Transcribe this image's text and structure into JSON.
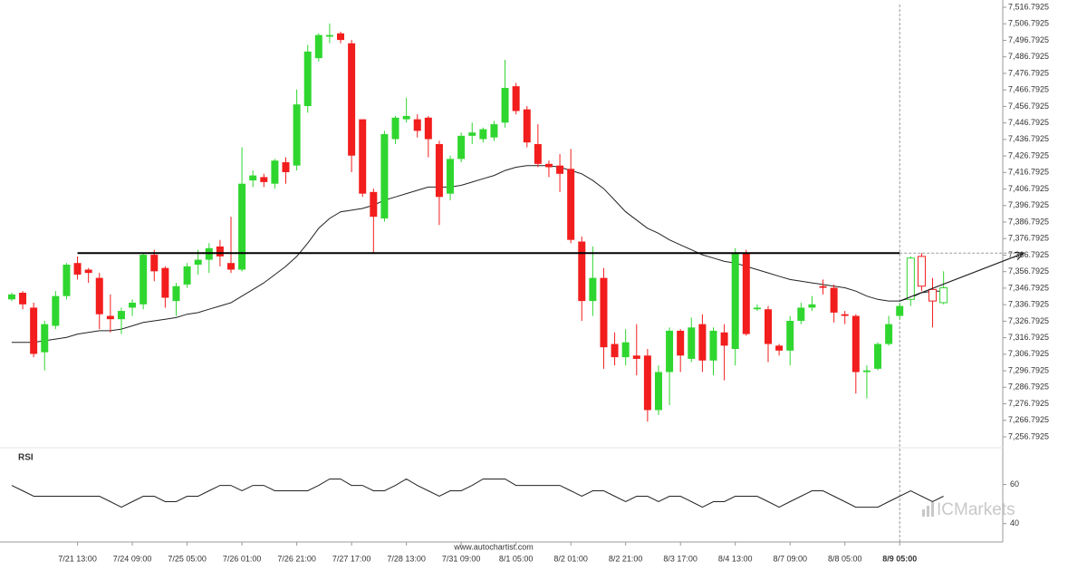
{
  "chart_data": [
    {
      "type": "candlestick",
      "up_color": "#2fd62f",
      "down_color": "#f21d1d",
      "xlim": [
        -1.07,
        90.4
      ],
      "ylim": [
        7251.3,
        7521.2
      ],
      "yticks": [
        {
          "value": 7256.7925,
          "label": "7,256.7925"
        },
        {
          "value": 7266.7925,
          "label": "7,266.7925"
        },
        {
          "value": 7276.7925,
          "label": "7,276.7925"
        },
        {
          "value": 7286.7925,
          "label": "7,286.7925"
        },
        {
          "value": 7296.7925,
          "label": "7,296.7925"
        },
        {
          "value": 7306.7925,
          "label": "7,306.7925"
        },
        {
          "value": 7316.7925,
          "label": "7,316.7925"
        },
        {
          "value": 7326.7925,
          "label": "7,326.7925"
        },
        {
          "value": 7336.7925,
          "label": "7,336.7925"
        },
        {
          "value": 7346.7925,
          "label": "7,346.7925"
        },
        {
          "value": 7356.7925,
          "label": "7,356.7925"
        },
        {
          "value": 7366.7925,
          "label": "7,366.7925"
        },
        {
          "value": 7376.7925,
          "label": "7,376.7925"
        },
        {
          "value": 7386.7925,
          "label": "7,386.7925"
        },
        {
          "value": 7396.7925,
          "label": "7,396.7925"
        },
        {
          "value": 7406.7925,
          "label": "7,406.7925"
        },
        {
          "value": 7416.7925,
          "label": "7,416.7925"
        },
        {
          "value": 7426.7925,
          "label": "7,426.7925"
        },
        {
          "value": 7436.7925,
          "label": "7,436.7925"
        },
        {
          "value": 7446.7925,
          "label": "7,446.7925"
        },
        {
          "value": 7456.7925,
          "label": "7,456.7925"
        },
        {
          "value": 7466.7925,
          "label": "7,466.7925"
        },
        {
          "value": 7476.7925,
          "label": "7,476.7925"
        },
        {
          "value": 7486.7925,
          "label": "7,486.7925"
        },
        {
          "value": 7496.7925,
          "label": "7,496.7925"
        },
        {
          "value": 7506.7925,
          "label": "7,506.7925"
        },
        {
          "value": 7516.7925,
          "label": "7,516.7925"
        }
      ],
      "xticks": [
        {
          "value": 6,
          "label": "7/21 13:00"
        },
        {
          "value": 11,
          "label": "7/24 09:00"
        },
        {
          "value": 16,
          "label": "7/25 05:00"
        },
        {
          "value": 21,
          "label": "7/26 01:00"
        },
        {
          "value": 26,
          "label": "7/26 21:00"
        },
        {
          "value": 31,
          "label": "7/27 17:00"
        },
        {
          "value": 36,
          "label": "7/28 13:00"
        },
        {
          "value": 41,
          "label": "7/31 09:00"
        },
        {
          "value": 46,
          "label": "8/1 05:00"
        },
        {
          "value": 51,
          "label": "8/2 01:00"
        },
        {
          "value": 56,
          "label": "8/2 21:00"
        },
        {
          "value": 61,
          "label": "8/3 17:00"
        },
        {
          "value": 66,
          "label": "8/4 13:00"
        },
        {
          "value": 71,
          "label": "8/7 09:00"
        },
        {
          "value": 76,
          "label": "8/8 05:00"
        },
        {
          "value": 81,
          "label": "8/9 05:00"
        }
      ],
      "highlight_tick": 15,
      "open": [
        7340,
        7344,
        7335,
        7308,
        7324,
        7342,
        7362,
        7358,
        7353,
        7330,
        7328,
        7335,
        7337,
        7367,
        7359,
        7339,
        7349,
        7361,
        7364,
        7372,
        7362,
        7358,
        7412,
        7414,
        7410,
        7423,
        7421,
        7457,
        7486,
        7499,
        7501,
        7495,
        7449,
        7405,
        7389,
        7437,
        7449,
        7449,
        7450,
        7434,
        7404,
        7425,
        7439,
        7437,
        7438,
        7447,
        7469,
        7455,
        7434,
        7422,
        7421,
        7419,
        7375,
        7339,
        7353,
        7313,
        7305,
        7306,
        7306,
        7273,
        7296,
        7321,
        7304,
        7325,
        7303,
        7320,
        7310,
        7368,
        7334,
        7334,
        7312,
        7309,
        7327,
        7335,
        7348,
        7347,
        7331,
        7330,
        7296,
        7298,
        7313,
        7330,
        7340,
        7366,
        7346,
        7338
      ],
      "high": [
        7344,
        7345,
        7338,
        7327,
        7345,
        7362,
        7366,
        7359,
        7356,
        7343,
        7335,
        7340,
        7368,
        7370,
        7360,
        7350,
        7362,
        7370,
        7374,
        7376,
        7390,
        7432,
        7418,
        7416,
        7425,
        7426,
        7467,
        7494,
        7501,
        7507,
        7502,
        7497,
        7449,
        7407,
        7442,
        7451,
        7462,
        7452,
        7451,
        7436,
        7427,
        7441,
        7447,
        7444,
        7448,
        7485,
        7471,
        7457,
        7446,
        7424,
        7428,
        7431,
        7378,
        7372,
        7359,
        7320,
        7322,
        7325,
        7310,
        7300,
        7323,
        7322,
        7329,
        7331,
        7323,
        7325,
        7371,
        7370,
        7337,
        7336,
        7313,
        7330,
        7338,
        7342,
        7352,
        7349,
        7333,
        7331,
        7300,
        7314,
        7330,
        7338,
        7366,
        7368,
        7353,
        7357
      ],
      "low": [
        7339,
        7334,
        7305,
        7297,
        7322,
        7340,
        7352,
        7350,
        7322,
        7320,
        7319,
        7330,
        7334,
        7351,
        7335,
        7330,
        7347,
        7355,
        7356,
        7360,
        7356,
        7357,
        7408,
        7408,
        7407,
        7410,
        7418,
        7453,
        7484,
        7495,
        7495,
        7417,
        7402,
        7368,
        7387,
        7434,
        7447,
        7438,
        7426,
        7385,
        7400,
        7423,
        7434,
        7435,
        7436,
        7444,
        7452,
        7432,
        7420,
        7414,
        7405,
        7374,
        7327,
        7330,
        7298,
        7300,
        7300,
        7294,
        7266,
        7270,
        7276,
        7296,
        7302,
        7296,
        7294,
        7291,
        7300,
        7318,
        7333,
        7302,
        7306,
        7300,
        7325,
        7333,
        7343,
        7326,
        7325,
        7283,
        7280,
        7297,
        7312,
        7328,
        7336,
        7345,
        7323,
        7337
      ],
      "close": [
        7343,
        7337,
        7307,
        7325,
        7342,
        7361,
        7355,
        7356,
        7331,
        7328,
        7333,
        7338,
        7367,
        7357,
        7341,
        7348,
        7360,
        7364,
        7371,
        7366,
        7358,
        7410,
        7415,
        7411,
        7424,
        7417,
        7458,
        7490,
        7500,
        7500,
        7497,
        7427,
        7404,
        7390,
        7440,
        7450,
        7451,
        7442,
        7437,
        7402,
        7425,
        7439,
        7441,
        7443,
        7446,
        7468,
        7454,
        7435,
        7422,
        7420,
        7416,
        7376,
        7339,
        7353,
        7311,
        7305,
        7314,
        7304,
        7273,
        7296,
        7321,
        7306,
        7323,
        7303,
        7321,
        7312,
        7368,
        7319,
        7335,
        7313,
        7309,
        7327,
        7335,
        7337,
        7347,
        7332,
        7330,
        7296,
        7297,
        7313,
        7325,
        7336,
        7365,
        7348,
        7339,
        7347
      ],
      "moving_average": [
        7314,
        7314,
        7314,
        7315,
        7316,
        7317,
        7319,
        7320,
        7321,
        7321,
        7322,
        7324,
        7326,
        7327,
        7328,
        7329,
        7331,
        7332,
        7334,
        7336,
        7338,
        7342,
        7346,
        7350,
        7355,
        7360,
        7366,
        7374,
        7383,
        7389,
        7393,
        7394,
        7395,
        7397,
        7400,
        7402,
        7404,
        7406,
        7408,
        7408,
        7408,
        7409,
        7411,
        7413,
        7415,
        7418,
        7420,
        7421,
        7421,
        7421,
        7420,
        7418,
        7416,
        7412,
        7407,
        7400,
        7393,
        7388,
        7383,
        7380,
        7376,
        7373,
        7370,
        7367,
        7365,
        7363,
        7362,
        7360,
        7358,
        7356,
        7354,
        7352,
        7351,
        7350,
        7349,
        7348,
        7347,
        7345,
        7342,
        7340,
        7339,
        7339,
        7341,
        7344,
        7345,
        7345
      ],
      "level": {
        "price": 7368,
        "start": 6,
        "end": 81
      },
      "arrow": {
        "from": [
          81,
          7339
        ],
        "to": [
          92.3,
          7368
        ]
      }
    },
    {
      "type": "line",
      "title": "RSI",
      "xlim": [
        -1.07,
        90.4
      ],
      "ylim": [
        32,
        76
      ],
      "yticks": [
        40,
        60
      ],
      "values": [
        59.5,
        56.8,
        54,
        54,
        54,
        54,
        54,
        54,
        54,
        51.2,
        48.4,
        51.2,
        54,
        54,
        51.2,
        51.2,
        54,
        54,
        56.8,
        59.5,
        59.5,
        56.8,
        59.5,
        59.5,
        56.8,
        56.8,
        56.8,
        56.8,
        59.5,
        62.8,
        62.8,
        59.5,
        59.5,
        56.8,
        56.8,
        59.5,
        62.8,
        59.5,
        56.8,
        54,
        56.8,
        56.8,
        59.5,
        62.8,
        62.8,
        62.8,
        59.5,
        59.5,
        59.5,
        59.5,
        59.5,
        56.8,
        54,
        56.8,
        56.8,
        54,
        51.2,
        54,
        54,
        51.2,
        54,
        54,
        51.2,
        48.4,
        51.2,
        51.2,
        54,
        54,
        54,
        51.2,
        48.4,
        51.2,
        54,
        56.8,
        56.8,
        54,
        51.2,
        48.4,
        48.4,
        48.4,
        51.2,
        54,
        56.8,
        54,
        51.2,
        54
      ]
    }
  ],
  "source": "www.autochartist.com",
  "brand": "ICMarkets"
}
